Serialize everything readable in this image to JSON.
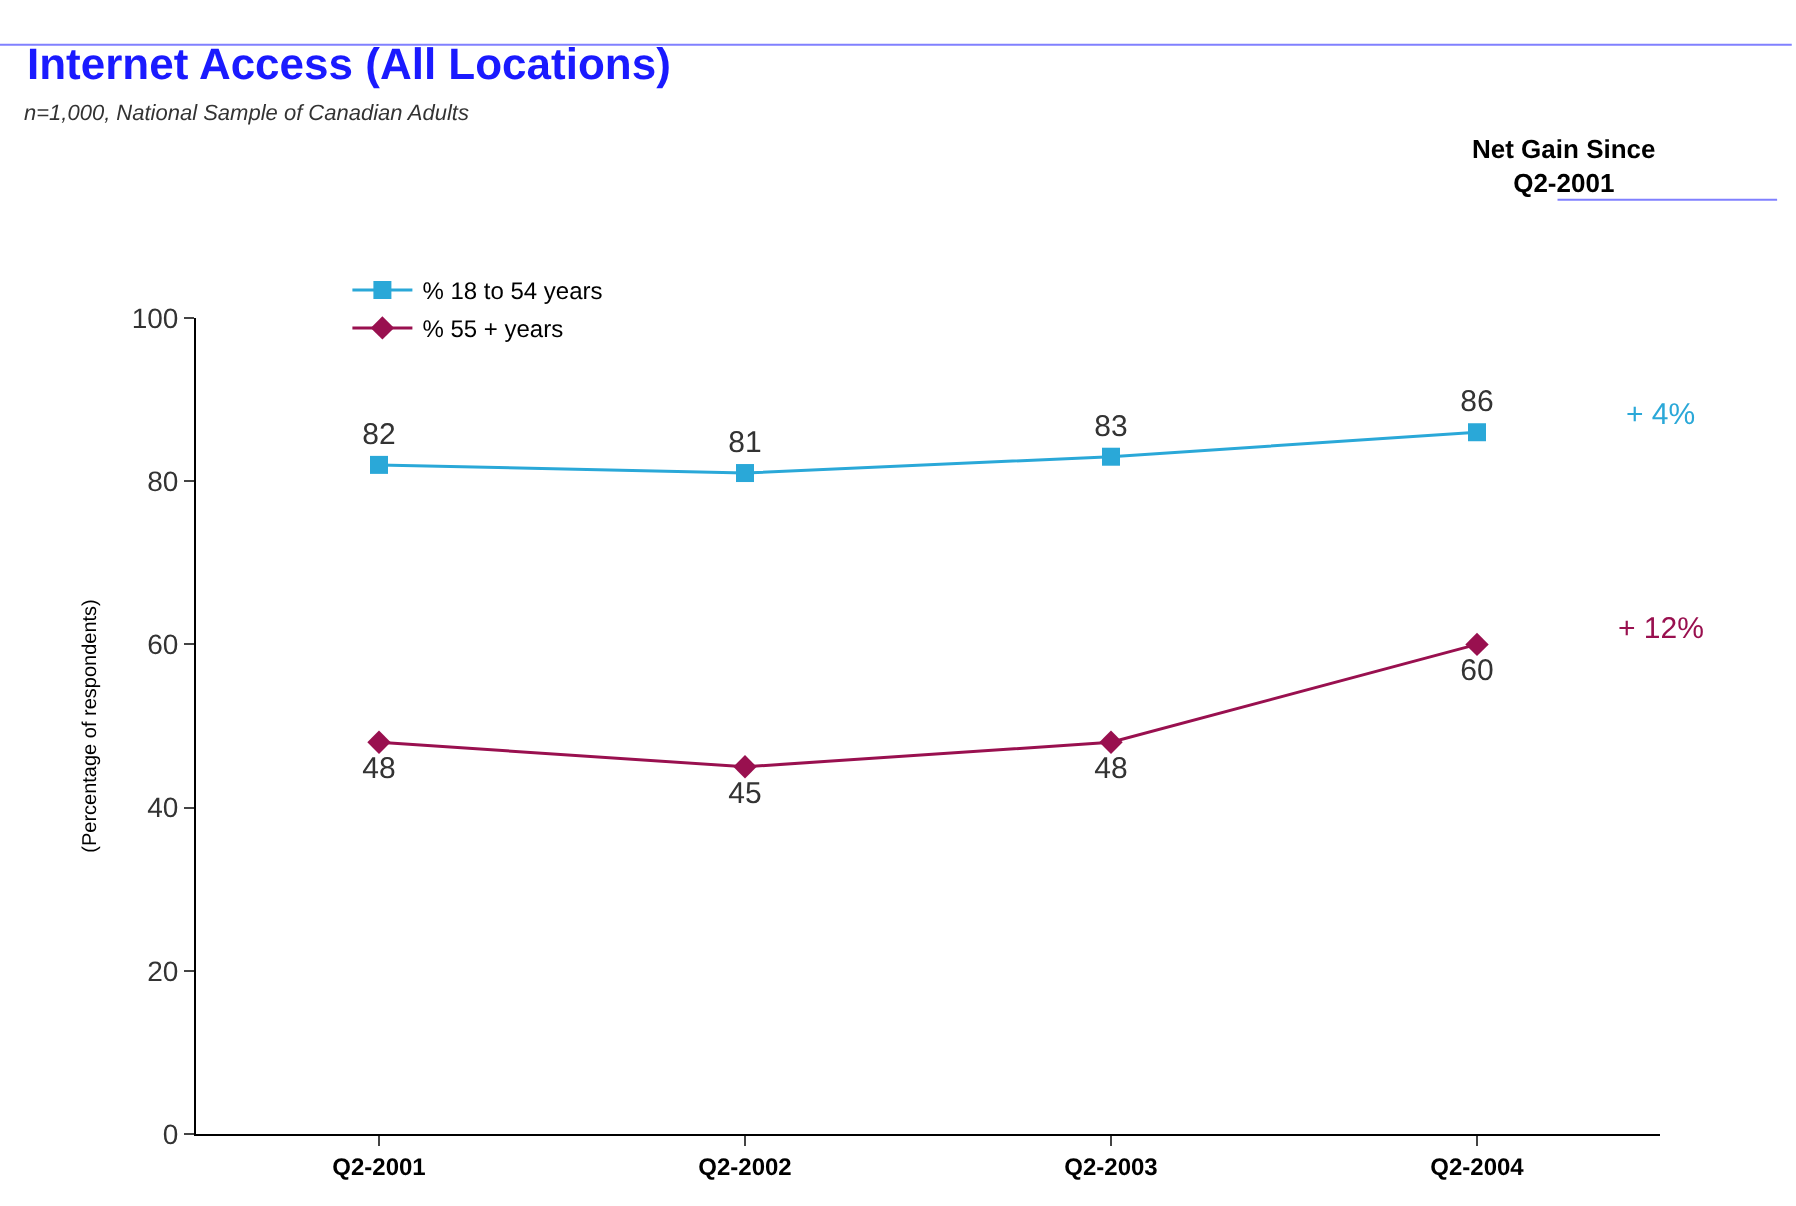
{
  "chart_data": {
    "type": "line",
    "title": "Internet Access (All Locations)",
    "subtitle": "n=1,000, National Sample of Canadian Adults",
    "ylabel": "(Percentage of respondents)",
    "categories": [
      "Q2-2001",
      "Q2-2002",
      "Q2-2003",
      "Q2-2004"
    ],
    "series": [
      {
        "name": "% 18 to 54 years",
        "color": "#2aa8d8",
        "values": [
          82,
          81,
          83,
          86
        ],
        "marker": "square"
      },
      {
        "name": "% 55 + years",
        "color": "#99104f",
        "values": [
          48,
          45,
          48,
          60
        ],
        "marker": "diamond"
      }
    ],
    "ylim": [
      0,
      100
    ],
    "yticks": [
      0,
      20,
      40,
      60,
      80,
      100
    ],
    "legend": "top left",
    "data_labels": true,
    "annotations": [
      "Net Gain Since Q2-2001",
      "+ 4%",
      "+ 12%"
    ]
  }
}
